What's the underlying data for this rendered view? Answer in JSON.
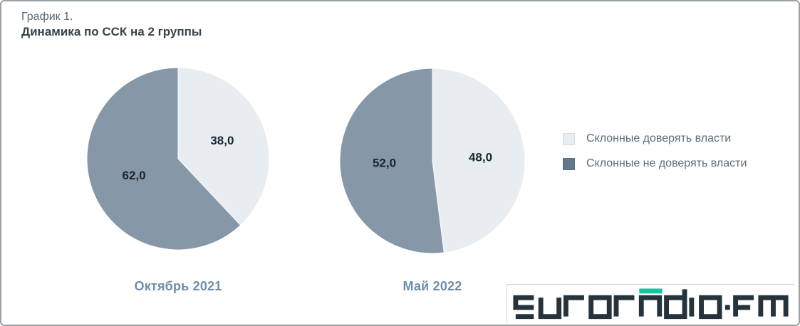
{
  "header": {
    "kicker": "График 1.",
    "title": "Динамика по ССК на 2 группы"
  },
  "chart_data": [
    {
      "type": "pie",
      "title": "Октябрь 2021",
      "labels": [
        "Склонные доверять власти",
        "Склонные не доверять власти"
      ],
      "values": [
        38.0,
        62.0
      ],
      "display_values": [
        "38,0",
        "62,0"
      ],
      "colors": [
        "#e8edf2",
        "#8697a7"
      ],
      "start_angle_deg": 0,
      "direction": "clockwise",
      "legend_position": "right"
    },
    {
      "type": "pie",
      "title": "Май 2022",
      "labels": [
        "Склонные доверять власти",
        "Склонные не доверять власти"
      ],
      "values": [
        48.0,
        52.0
      ],
      "display_values": [
        "48,0",
        "52,0"
      ],
      "colors": [
        "#e8edf2",
        "#8697a7"
      ],
      "start_angle_deg": 0,
      "direction": "clockwise",
      "legend_position": "right"
    }
  ],
  "legend": {
    "items": [
      {
        "label": "Склонные доверять власти",
        "color": "#e7edf1"
      },
      {
        "label": "Склонные не доверять власти",
        "color": "#61798c"
      }
    ]
  },
  "watermark": {
    "text": "euroradio·fm",
    "color": "#25333c",
    "accent_color": "#17c3a0"
  }
}
